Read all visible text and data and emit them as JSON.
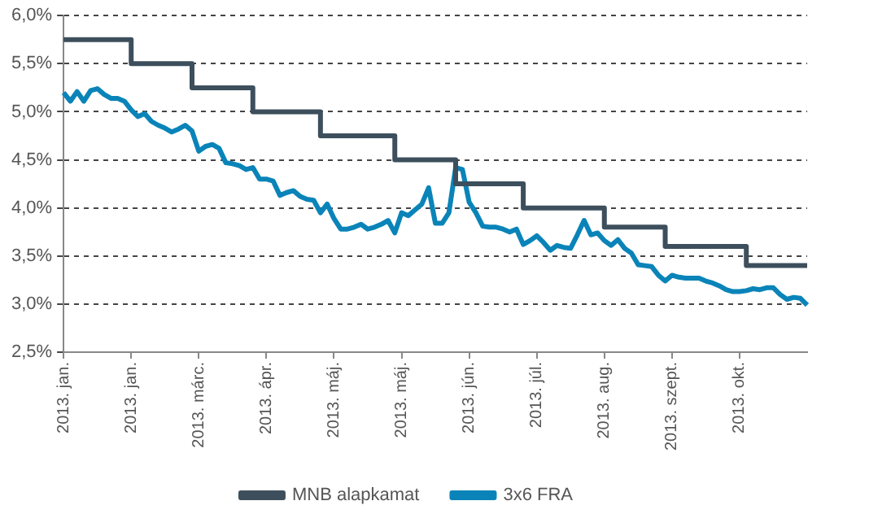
{
  "chart_data": {
    "type": "line",
    "categories": [
      "2013. jan.",
      null,
      null,
      null,
      null,
      null,
      null,
      null,
      null,
      null,
      "2013. jan.",
      null,
      null,
      null,
      null,
      null,
      null,
      null,
      null,
      null,
      "2013. márc.",
      null,
      null,
      null,
      null,
      null,
      null,
      null,
      null,
      null,
      "2013. ápr.",
      null,
      null,
      null,
      null,
      null,
      null,
      null,
      null,
      null,
      "2013. máj.",
      null,
      null,
      null,
      null,
      null,
      null,
      null,
      null,
      null,
      "2013. máj.",
      null,
      null,
      null,
      null,
      null,
      null,
      null,
      null,
      null,
      "2013. jún.",
      null,
      null,
      null,
      null,
      null,
      null,
      null,
      null,
      null,
      "2013. júl.",
      null,
      null,
      null,
      null,
      null,
      null,
      null,
      null,
      null,
      "2013. aug.",
      null,
      null,
      null,
      null,
      null,
      null,
      null,
      null,
      null,
      "2013. szept.",
      null,
      null,
      null,
      null,
      null,
      null,
      null,
      null,
      null,
      "2013. okt.",
      null,
      null,
      null,
      null,
      null,
      null,
      null,
      null,
      null,
      null
    ],
    "series": [
      {
        "name": "MNB alapkamat",
        "type": "step",
        "color": "#3d4f5c",
        "values": [
          5.75,
          5.75,
          5.75,
          5.75,
          5.75,
          5.75,
          5.75,
          5.75,
          5.75,
          5.75,
          5.5,
          5.5,
          5.5,
          5.5,
          5.5,
          5.5,
          5.5,
          5.5,
          5.5,
          5.25,
          5.25,
          5.25,
          5.25,
          5.25,
          5.25,
          5.25,
          5.25,
          5.25,
          5.0,
          5.0,
          5.0,
          5.0,
          5.0,
          5.0,
          5.0,
          5.0,
          5.0,
          5.0,
          4.75,
          4.75,
          4.75,
          4.75,
          4.75,
          4.75,
          4.75,
          4.75,
          4.75,
          4.75,
          4.75,
          4.5,
          4.5,
          4.5,
          4.5,
          4.5,
          4.5,
          4.5,
          4.5,
          4.5,
          4.25,
          4.25,
          4.25,
          4.25,
          4.25,
          4.25,
          4.25,
          4.25,
          4.25,
          4.25,
          4.0,
          4.0,
          4.0,
          4.0,
          4.0,
          4.0,
          4.0,
          4.0,
          4.0,
          4.0,
          4.0,
          4.0,
          3.8,
          3.8,
          3.8,
          3.8,
          3.8,
          3.8,
          3.8,
          3.8,
          3.8,
          3.6,
          3.6,
          3.6,
          3.6,
          3.6,
          3.6,
          3.6,
          3.6,
          3.6,
          3.6,
          3.6,
          3.6,
          3.4,
          3.4,
          3.4,
          3.4,
          3.4,
          3.4,
          3.4,
          3.4,
          3.4,
          3.4
        ]
      },
      {
        "name": "3x6 FRA",
        "type": "line",
        "color": "#0a84b8",
        "values": [
          5.2,
          5.11,
          5.21,
          5.11,
          5.22,
          5.24,
          5.18,
          5.14,
          5.14,
          5.11,
          5.02,
          4.95,
          4.98,
          4.9,
          4.86,
          4.83,
          4.79,
          4.82,
          4.86,
          4.8,
          4.59,
          4.64,
          4.66,
          4.62,
          4.47,
          4.46,
          4.44,
          4.4,
          4.42,
          4.3,
          4.3,
          4.28,
          4.13,
          4.16,
          4.18,
          4.12,
          4.09,
          4.08,
          3.95,
          4.04,
          3.89,
          3.78,
          3.78,
          3.8,
          3.83,
          3.78,
          3.8,
          3.83,
          3.87,
          3.74,
          3.95,
          3.92,
          3.98,
          4.04,
          4.21,
          3.84,
          3.84,
          3.95,
          4.42,
          4.4,
          4.06,
          3.95,
          3.81,
          3.8,
          3.8,
          3.78,
          3.75,
          3.78,
          3.62,
          3.66,
          3.71,
          3.64,
          3.56,
          3.61,
          3.59,
          3.58,
          3.72,
          3.87,
          3.72,
          3.74,
          3.66,
          3.61,
          3.67,
          3.58,
          3.53,
          3.41,
          3.4,
          3.39,
          3.3,
          3.24,
          3.3,
          3.28,
          3.27,
          3.27,
          3.27,
          3.24,
          3.22,
          3.19,
          3.15,
          3.13,
          3.13,
          3.14,
          3.16,
          3.15,
          3.17,
          3.17,
          3.1,
          3.05,
          3.07,
          3.06,
          2.99
        ]
      }
    ],
    "ylim": [
      2.5,
      6.0
    ],
    "yticks": [
      {
        "value": 2.5,
        "label": "2,5%"
      },
      {
        "value": 3.0,
        "label": "3,0%"
      },
      {
        "value": 3.5,
        "label": "3,5%"
      },
      {
        "value": 4.0,
        "label": "4,0%"
      },
      {
        "value": 4.5,
        "label": "4,5%"
      },
      {
        "value": 5.0,
        "label": "5,0%"
      },
      {
        "value": 5.5,
        "label": "5,5%"
      },
      {
        "value": 6.0,
        "label": "6,0%"
      }
    ],
    "grid": "y",
    "legend": "bottom",
    "marker": "none",
    "line_style": "solid"
  }
}
